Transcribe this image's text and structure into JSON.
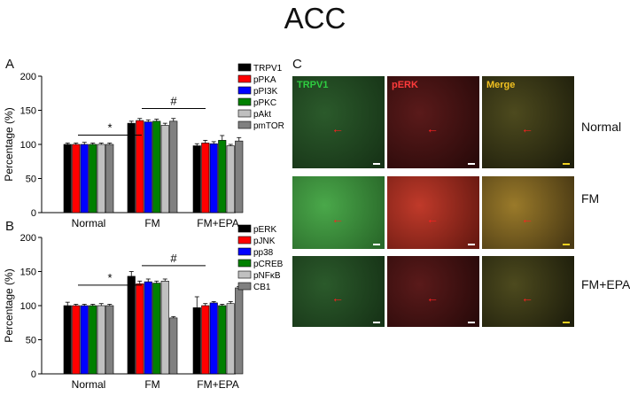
{
  "figure": {
    "title": "ACC",
    "panel_a": "A",
    "panel_b": "B",
    "panel_c": "C"
  },
  "chart_data": [
    {
      "type": "bar",
      "panel": "A",
      "title": "",
      "ylabel": "Percentage (%)",
      "xlabel": "",
      "ylim": [
        0,
        200
      ],
      "yticks": [
        0,
        50,
        100,
        150,
        200
      ],
      "categories": [
        "Normal",
        "FM",
        "FM+EPA"
      ],
      "series": [
        {
          "name": "TRPV1",
          "color": "#000000",
          "values": [
            100,
            131,
            98
          ],
          "errors": [
            2,
            3,
            3
          ]
        },
        {
          "name": "pPKA",
          "color": "#ff0000",
          "values": [
            100,
            135,
            102
          ],
          "errors": [
            2,
            3,
            4
          ]
        },
        {
          "name": "pPI3K",
          "color": "#0000ff",
          "values": [
            100,
            133,
            101
          ],
          "errors": [
            3,
            3,
            3
          ]
        },
        {
          "name": "pPKC",
          "color": "#008000",
          "values": [
            100,
            134,
            106
          ],
          "errors": [
            2,
            3,
            7
          ]
        },
        {
          "name": "pAkt",
          "color": "#c0c0c0",
          "values": [
            100,
            128,
            98
          ],
          "errors": [
            2,
            3,
            2
          ]
        },
        {
          "name": "pmTOR",
          "color": "#808080",
          "values": [
            100,
            134,
            105
          ],
          "errors": [
            2,
            4,
            5
          ]
        }
      ],
      "annotations": [
        {
          "text": "*",
          "between": [
            "Normal",
            "FM"
          ]
        },
        {
          "text": "#",
          "between": [
            "FM",
            "FM+EPA"
          ]
        }
      ]
    },
    {
      "type": "bar",
      "panel": "B",
      "title": "",
      "ylabel": "Percentage (%)",
      "xlabel": "",
      "ylim": [
        0,
        200
      ],
      "yticks": [
        0,
        50,
        100,
        150,
        200
      ],
      "categories": [
        "Normal",
        "FM",
        "FM+EPA"
      ],
      "series": [
        {
          "name": "pERK",
          "color": "#000000",
          "values": [
            100,
            143,
            97
          ],
          "errors": [
            5,
            7,
            16
          ]
        },
        {
          "name": "pJNK",
          "color": "#ff0000",
          "values": [
            100,
            132,
            100
          ],
          "errors": [
            2,
            4,
            3
          ]
        },
        {
          "name": "pp38",
          "color": "#0000ff",
          "values": [
            100,
            135,
            104
          ],
          "errors": [
            2,
            4,
            2
          ]
        },
        {
          "name": "pCREB",
          "color": "#008000",
          "values": [
            100,
            133,
            100
          ],
          "errors": [
            2,
            3,
            2
          ]
        },
        {
          "name": "pNFκB",
          "color": "#c0c0c0",
          "values": [
            100,
            136,
            103
          ],
          "errors": [
            3,
            3,
            3
          ]
        },
        {
          "name": "CB1",
          "color": "#808080",
          "values": [
            100,
            82,
            126
          ],
          "errors": [
            2,
            2,
            2
          ]
        }
      ],
      "annotations": [
        {
          "text": "*",
          "between": [
            "Normal",
            "FM"
          ]
        },
        {
          "text": "#",
          "between": [
            "FM",
            "FM+EPA"
          ]
        }
      ]
    }
  ],
  "micrographs": {
    "columns": [
      {
        "label": "TRPV1",
        "color": "#2ecc40"
      },
      {
        "label": "pERK",
        "color": "#ff3b3b"
      },
      {
        "label": "Merge",
        "color": "#f0c020"
      }
    ],
    "rows": [
      {
        "label": "Normal"
      },
      {
        "label": "FM"
      },
      {
        "label": "FM+EPA"
      }
    ]
  }
}
